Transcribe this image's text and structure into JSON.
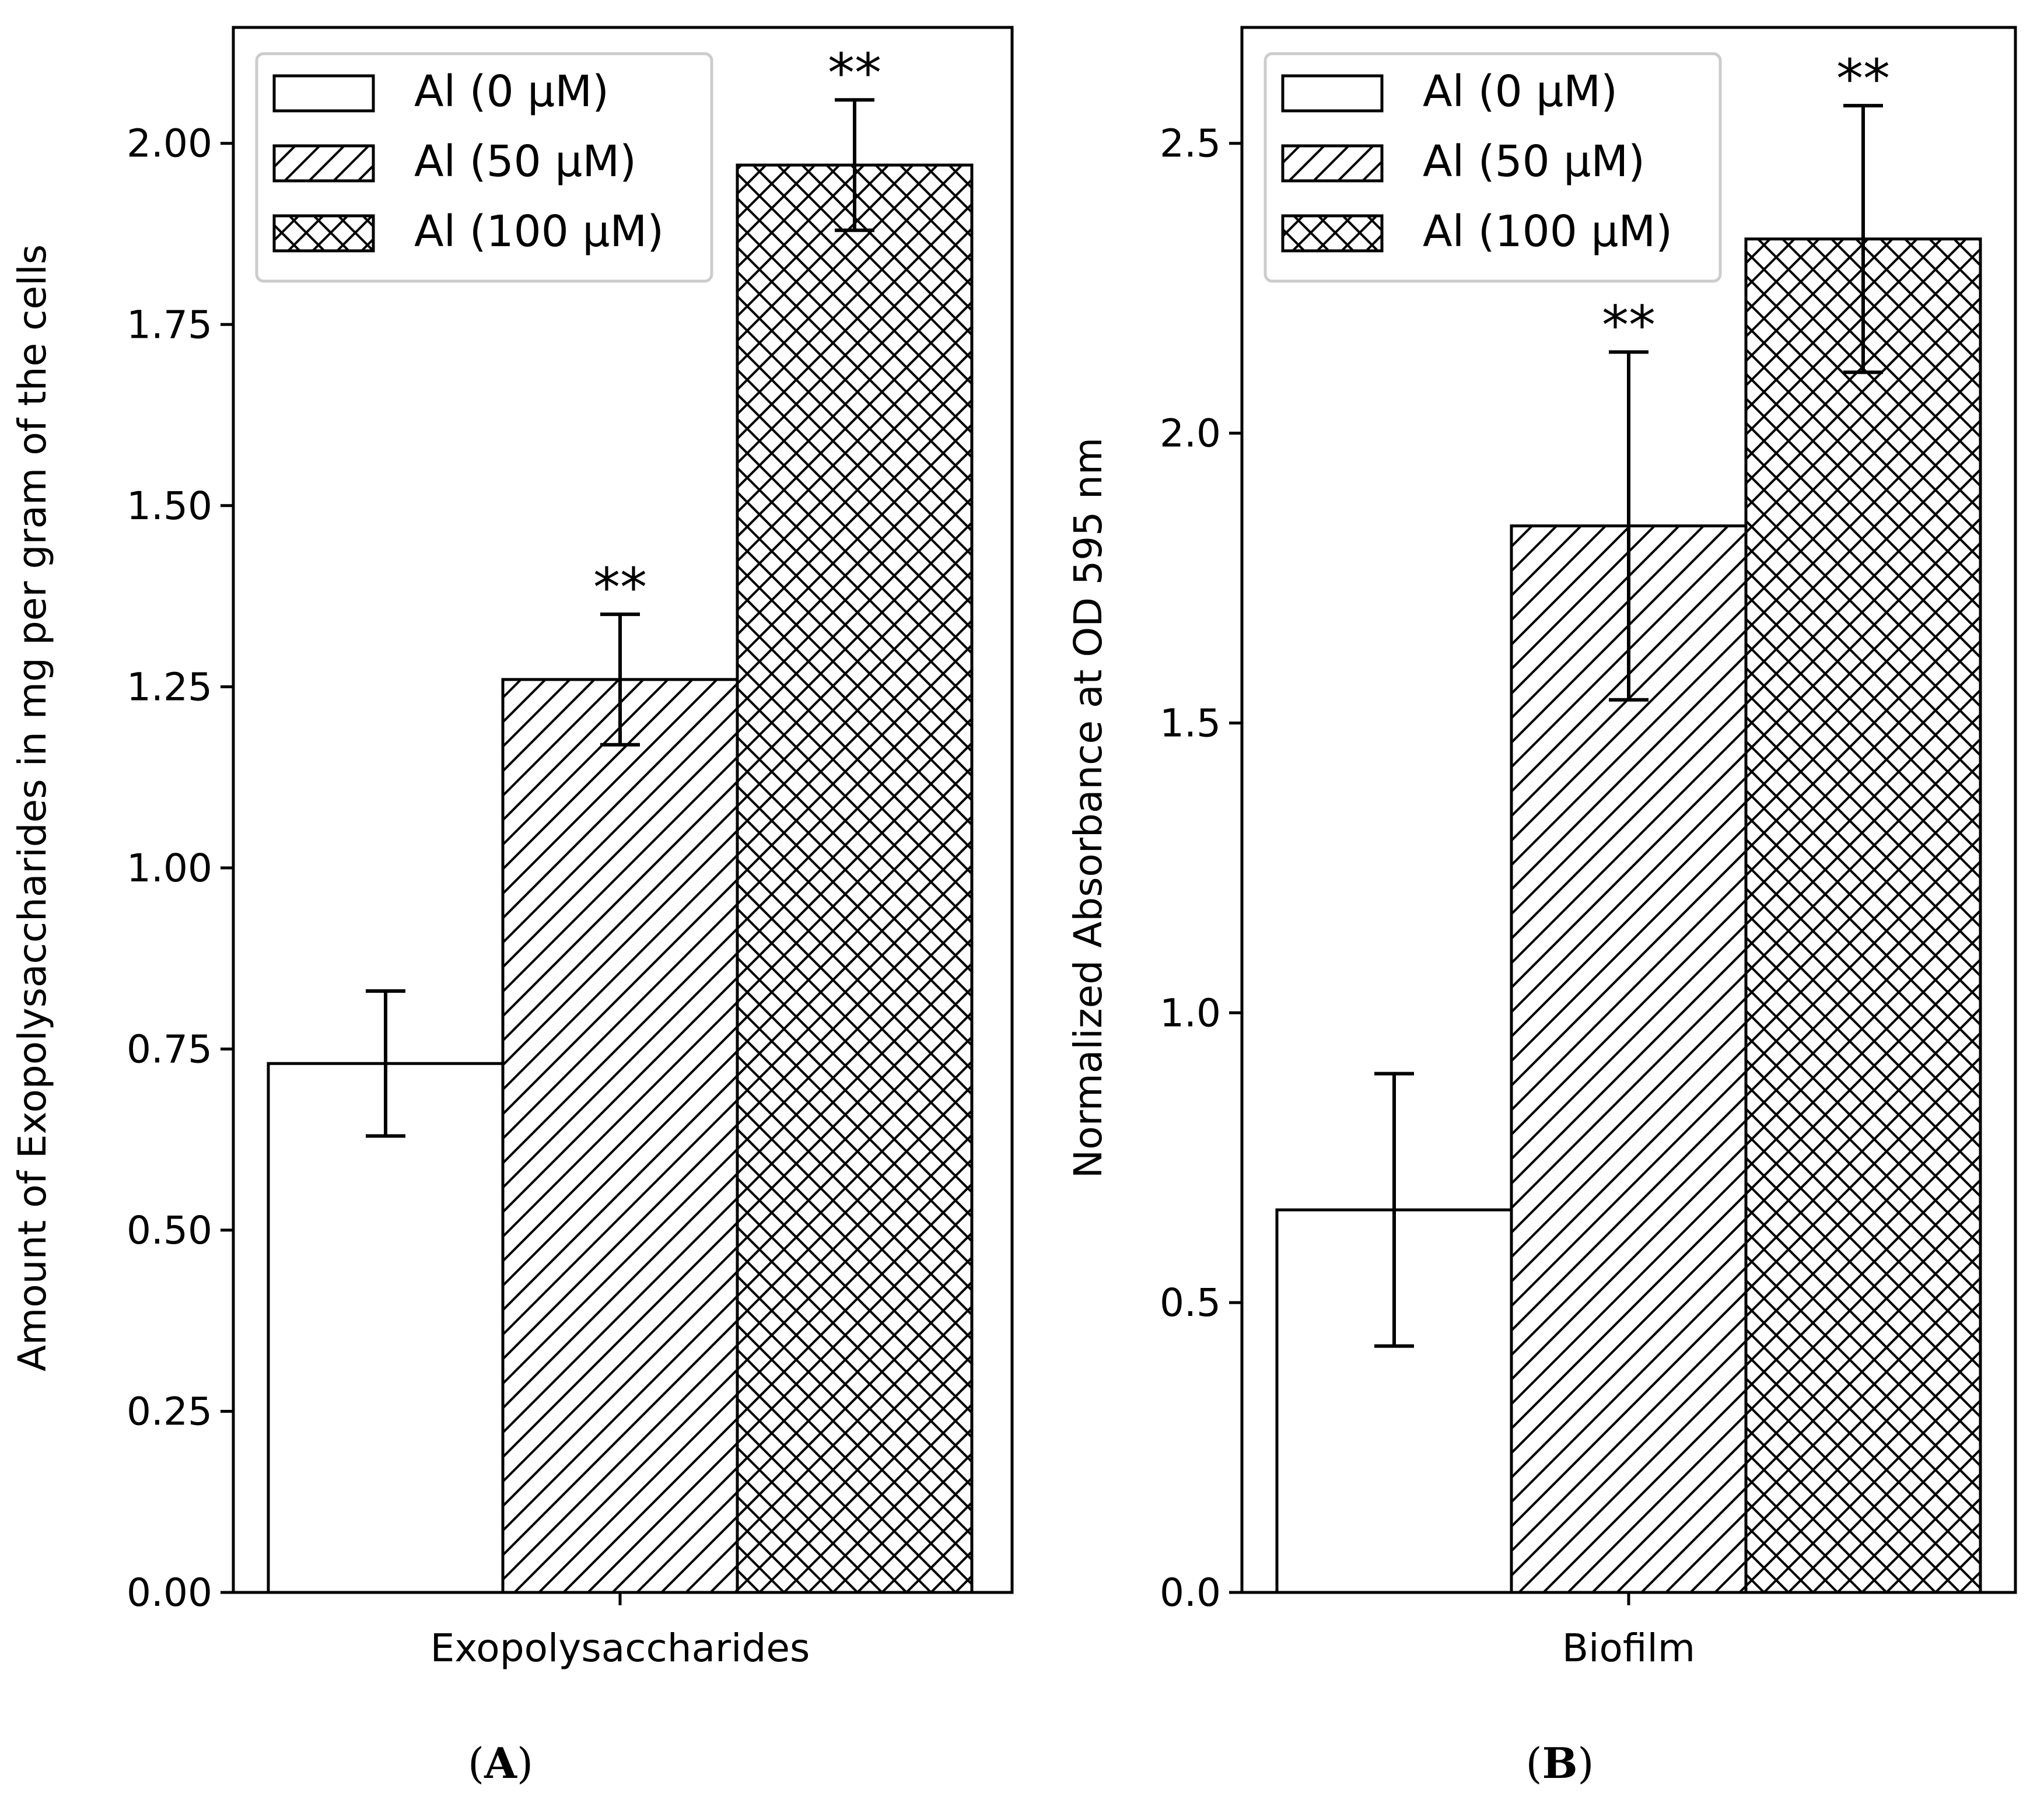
{
  "chart_data": [
    {
      "type": "bar",
      "panel_label": "A",
      "categories": [
        "Exopolysaccharides"
      ],
      "xlabel": "Exopolysaccharides",
      "ylabel": "Amount of Exopolysaccharides in mg per gram of the cells",
      "ylim": [
        0,
        2.16
      ],
      "yticks": [
        0.0,
        0.25,
        0.5,
        0.75,
        1.0,
        1.25,
        1.5,
        1.75,
        2.0
      ],
      "ytick_labels": [
        "0.00",
        "0.25",
        "0.50",
        "0.75",
        "1.00",
        "1.25",
        "1.50",
        "1.75",
        "2.00"
      ],
      "legend_position": "top-left",
      "series": [
        {
          "name": "Al (0 μM)",
          "pattern": "none",
          "values": [
            0.73
          ],
          "error": [
            0.1
          ],
          "significance": ""
        },
        {
          "name": "Al (50 μM)",
          "pattern": "diagonal",
          "values": [
            1.26
          ],
          "error": [
            0.09
          ],
          "significance": "**"
        },
        {
          "name": "Al (100 μM)",
          "pattern": "crosshatch",
          "values": [
            1.97
          ],
          "error": [
            0.09
          ],
          "significance": "**"
        }
      ]
    },
    {
      "type": "bar",
      "panel_label": "B",
      "categories": [
        "Biofilm"
      ],
      "xlabel": "Biofilm",
      "ylabel": "Normalized Absorbance at OD 595 nm",
      "ylim": [
        0,
        2.7
      ],
      "yticks": [
        0.0,
        0.5,
        1.0,
        1.5,
        2.0,
        2.5
      ],
      "ytick_labels": [
        "0.0",
        "0.5",
        "1.0",
        "1.5",
        "2.0",
        "2.5"
      ],
      "legend_position": "top-left",
      "series": [
        {
          "name": "Al (0 μM)",
          "pattern": "none",
          "values": [
            0.66
          ],
          "error": [
            0.235
          ],
          "significance": ""
        },
        {
          "name": "Al (50 μM)",
          "pattern": "diagonal",
          "values": [
            1.84
          ],
          "error": [
            0.3
          ],
          "significance": "**"
        },
        {
          "name": "Al (100 μM)",
          "pattern": "crosshatch",
          "values": [
            2.335
          ],
          "error": [
            0.23
          ],
          "significance": "**"
        }
      ]
    }
  ]
}
